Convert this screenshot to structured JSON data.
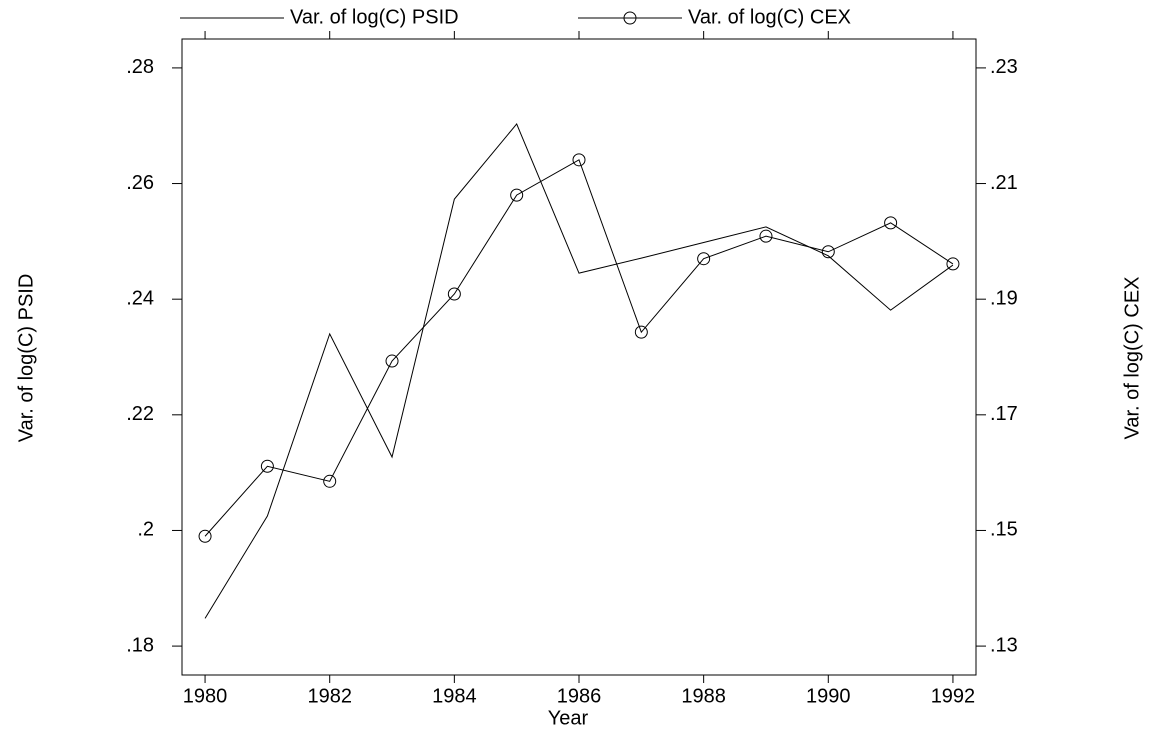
{
  "chart_data": {
    "type": "line",
    "x_label": "Year",
    "y_label": "Var. of log(C) PSID",
    "y2_label": "Var. of log(C) CEX",
    "x": [
      1980,
      1981,
      1982,
      1983,
      1984,
      1985,
      1986,
      1987,
      1988,
      1989,
      1990,
      1991,
      1992
    ],
    "series": [
      {
        "name": "Var. of log(C) PSID",
        "color": "#000000",
        "marker": "none",
        "values": [
          0.1848,
          0.2025,
          0.234,
          0.2127,
          0.2573,
          0.2703,
          0.2445,
          0.2471,
          0.2498,
          0.2525,
          0.2475,
          0.2381,
          0.2459
        ]
      },
      {
        "name": "Var. of log(C) CEX",
        "color": "#000000",
        "marker": "circle",
        "axis": "y2",
        "values": [
          0.149,
          0.1611,
          0.1585,
          0.1793,
          0.1909,
          0.208,
          0.2141,
          0.1843,
          0.197,
          0.2009,
          0.1982,
          0.2032,
          0.1961
        ]
      }
    ],
    "xlim": [
      1979.63,
      1992.37
    ],
    "xticks": [
      1980,
      1982,
      1984,
      1986,
      1988,
      1990,
      1992
    ],
    "ylim": [
      0.175,
      0.285
    ],
    "yticks": [
      {
        "value": 0.18,
        "label": ".18"
      },
      {
        "value": 0.2,
        "label": ".2"
      },
      {
        "value": 0.22,
        "label": ".22"
      },
      {
        "value": 0.24,
        "label": ".24"
      },
      {
        "value": 0.26,
        "label": ".26"
      },
      {
        "value": 0.28,
        "label": ".28"
      }
    ],
    "y2lim": [
      0.125,
      0.235
    ],
    "y2ticks": [
      {
        "value": 0.13,
        "label": ".13"
      },
      {
        "value": 0.15,
        "label": ".15"
      },
      {
        "value": 0.17,
        "label": ".17"
      },
      {
        "value": 0.19,
        "label": ".19"
      },
      {
        "value": 0.21,
        "label": ".21"
      },
      {
        "value": 0.23,
        "label": ".23"
      }
    ],
    "legend": "top"
  }
}
